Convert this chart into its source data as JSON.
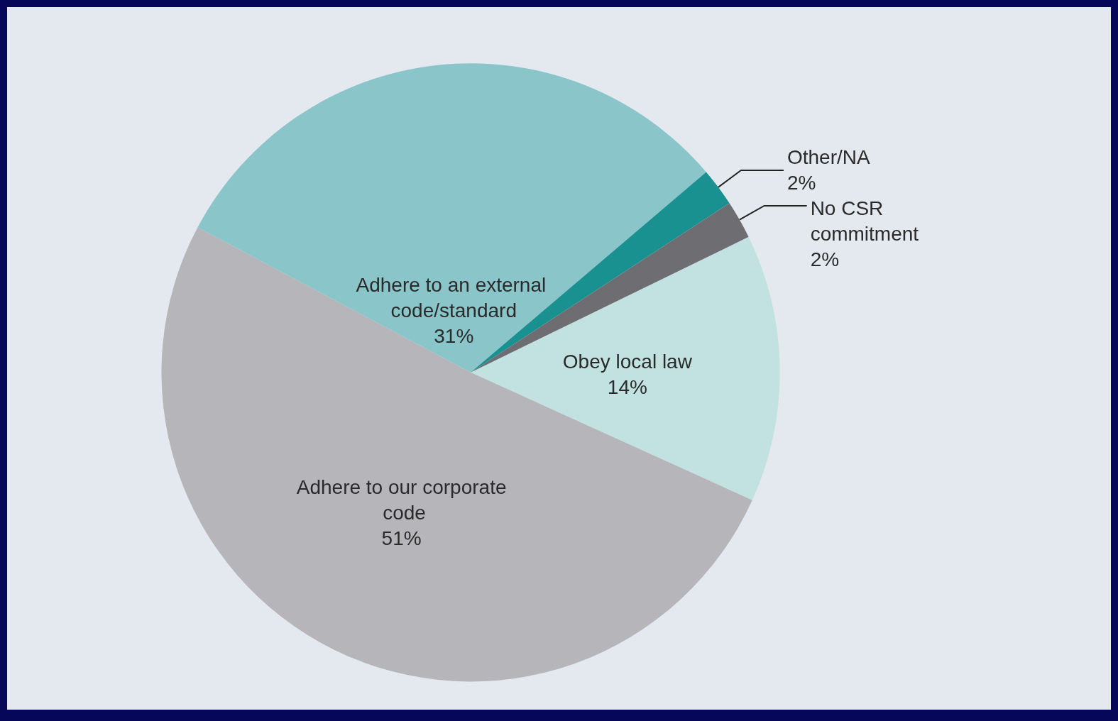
{
  "chart_data": {
    "type": "pie",
    "categories": [
      "Obey local law",
      "Adhere to our corporate code",
      "Adhere to an external code/standard",
      "Other/NA",
      "No CSR commitment"
    ],
    "values": [
      14,
      51,
      31,
      2,
      2
    ],
    "colors": [
      "#c2e2e2",
      "#b5b5ba",
      "#8ac5c9",
      "#1a9191",
      "#6e6e72"
    ],
    "value_labels": [
      "14%",
      "51%",
      "31%",
      "2%",
      "2%"
    ],
    "legend": false
  }
}
